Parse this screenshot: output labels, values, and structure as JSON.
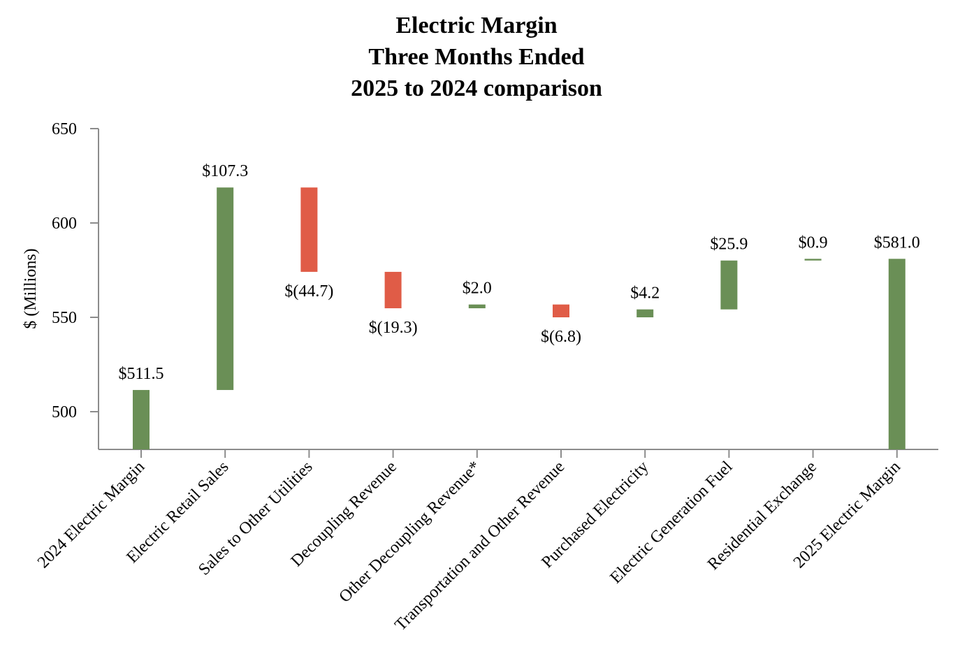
{
  "chart_data": {
    "type": "waterfall",
    "title": "Electric Margin",
    "subtitle_lines": [
      "Three Months Ended",
      "2025 to 2024 comparison"
    ],
    "ylabel": "$ (Millions)",
    "xlabel": "",
    "ylim": [
      480,
      650
    ],
    "yticks": [
      500,
      550,
      600,
      650
    ],
    "grid": false,
    "colors": {
      "increase": "#6a8f56",
      "decrease": "#e05c47",
      "total": "#6a8f56",
      "axis": "#8c8c8c"
    },
    "bars": [
      {
        "category": "2024 Electric Margin",
        "kind": "total",
        "value": 511.5,
        "label": "$511.5"
      },
      {
        "category": "Electric Retail Sales",
        "kind": "increase",
        "value": 107.3,
        "label": "$107.3"
      },
      {
        "category": "Sales to Other Utilities",
        "kind": "decrease",
        "value": -44.7,
        "label": "$(44.7)"
      },
      {
        "category": "Decoupling Revenue",
        "kind": "decrease",
        "value": -19.3,
        "label": "$(19.3)"
      },
      {
        "category": "Other Decoupling Revenue*",
        "kind": "increase",
        "value": 2.0,
        "label": "$2.0"
      },
      {
        "category": "Transportation and Other Revenue",
        "kind": "decrease",
        "value": -6.8,
        "label": "$(6.8)"
      },
      {
        "category": "Purchased Electricity",
        "kind": "increase",
        "value": 4.2,
        "label": "$4.2"
      },
      {
        "category": "Electric Generation Fuel",
        "kind": "increase",
        "value": 25.9,
        "label": "$25.9"
      },
      {
        "category": "Residential Exchange",
        "kind": "increase",
        "value": 0.9,
        "label": "$0.9"
      },
      {
        "category": "2025 Electric Margin",
        "kind": "total",
        "value": 581.0,
        "label": "$581.0"
      }
    ]
  }
}
